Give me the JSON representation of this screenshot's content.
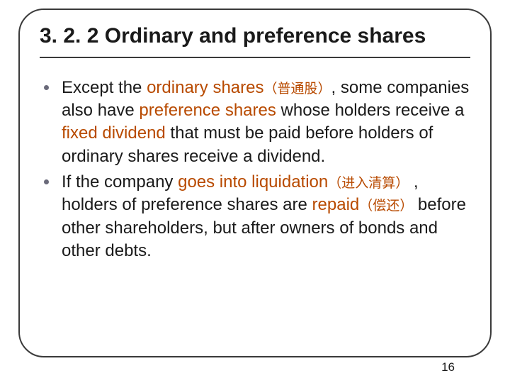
{
  "title": {
    "text": "3. 2. 2 Ordinary and preference shares",
    "fontsize": 30,
    "color": "#1a1a1a"
  },
  "body_fontsize": 24,
  "cn_fontsize": 19,
  "highlight_color": "#b84a00",
  "rule_color": "#3a3a3a",
  "bullet_dot_color": "#6a6a7a",
  "bullets": [
    {
      "segments": [
        {
          "t": "Except the ",
          "style": "plain"
        },
        {
          "t": "ordinary shares",
          "style": "hl"
        },
        {
          "t": "（普通股）",
          "style": "cn"
        },
        {
          "t": ", some companies also have ",
          "style": "plain"
        },
        {
          "t": "preference shares",
          "style": "hl"
        },
        {
          "t": " whose holders receive a ",
          "style": "plain"
        },
        {
          "t": "fixed dividend",
          "style": "hl"
        },
        {
          "t": " that must be paid before holders of ordinary shares receive a dividend.",
          "style": "plain"
        }
      ]
    },
    {
      "segments": [
        {
          "t": "If the company ",
          "style": "plain"
        },
        {
          "t": "goes into liquidation",
          "style": "hl"
        },
        {
          "t": "（进入清算）",
          "style": "cn"
        },
        {
          "t": " , holders of preference shares are ",
          "style": "plain"
        },
        {
          "t": "repaid",
          "style": "hl"
        },
        {
          "t": "（偿还）",
          "style": "cn"
        },
        {
          "t": " before other shareholders, but after owners of bonds and other debts.",
          "style": "plain"
        }
      ]
    }
  ],
  "page_number": "16",
  "page_number_fontsize": 17
}
